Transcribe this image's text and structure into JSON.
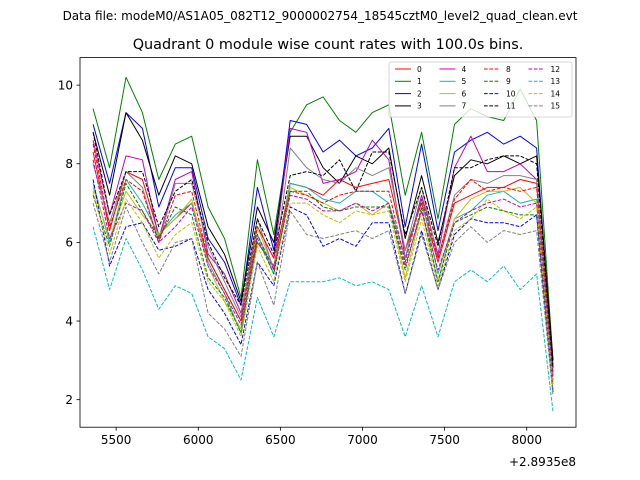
{
  "chart_data": {
    "type": "line",
    "suptitle": "Data file: modeM0/AS1A05_082T12_9000002754_18545cztM0_level2_quad_clean.evt",
    "title": "Quadrant 0 module wise count rates with 100.0s bins.",
    "xlabel": "",
    "ylabel": "",
    "x_offset_label": "+2.8935e8",
    "xlim": [
      5280,
      8300
    ],
    "ylim": [
      1.3,
      10.7
    ],
    "xticks": [
      5500,
      6000,
      6500,
      7000,
      7500,
      8000
    ],
    "xtick_labels": [
      "5500",
      "6000",
      "6500",
      "7000",
      "7500",
      "8000"
    ],
    "yticks": [
      2,
      4,
      6,
      8,
      10
    ],
    "ytick_labels": [
      "2",
      "4",
      "6",
      "8",
      "10"
    ],
    "legend_position": "top-right",
    "legend_columns": 4,
    "x": [
      5360,
      5460,
      5560,
      5660,
      5760,
      5860,
      5960,
      6060,
      6160,
      6260,
      6360,
      6460,
      6560,
      6660,
      6760,
      6860,
      6960,
      7060,
      7160,
      7260,
      7360,
      7460,
      7560,
      7660,
      7760,
      7860,
      7960,
      8060,
      8160
    ],
    "series": [
      {
        "name": "0",
        "color": "#ff0000",
        "dash": "solid",
        "values": [
          8.3,
          6.3,
          7.8,
          7.6,
          6.2,
          6.6,
          7.0,
          5.6,
          4.8,
          4.0,
          6.0,
          5.4,
          7.5,
          7.4,
          7.2,
          7.6,
          7.4,
          7.5,
          7.6,
          5.8,
          7.0,
          5.5,
          7.0,
          7.2,
          7.4,
          7.4,
          7.6,
          7.5,
          2.9
        ]
      },
      {
        "name": "1",
        "color": "#008000",
        "dash": "solid",
        "values": [
          9.4,
          7.9,
          10.2,
          9.3,
          7.6,
          8.5,
          8.7,
          6.9,
          6.1,
          4.6,
          8.1,
          6.2,
          8.8,
          9.5,
          9.7,
          9.1,
          8.8,
          9.3,
          9.5,
          7.2,
          8.8,
          6.6,
          9.0,
          9.4,
          9.2,
          9.1,
          9.9,
          9.1,
          3.0
        ]
      },
      {
        "name": "2",
        "color": "#0000ff",
        "dash": "solid",
        "values": [
          9.0,
          7.5,
          9.3,
          8.9,
          6.9,
          7.9,
          7.9,
          6.1,
          5.5,
          4.4,
          7.4,
          5.8,
          9.1,
          9.0,
          8.3,
          8.6,
          8.2,
          8.4,
          8.9,
          6.4,
          8.5,
          6.3,
          8.3,
          8.6,
          8.8,
          8.5,
          8.7,
          8.4,
          2.8
        ]
      },
      {
        "name": "3",
        "color": "#000000",
        "dash": "solid",
        "values": [
          8.8,
          7.2,
          9.3,
          8.6,
          7.2,
          8.2,
          8.0,
          6.4,
          5.7,
          4.5,
          6.9,
          6.0,
          8.7,
          8.7,
          7.9,
          7.5,
          8.2,
          8.0,
          8.4,
          6.1,
          7.7,
          6.0,
          7.7,
          8.1,
          8.0,
          8.2,
          8.0,
          8.2,
          3.0
        ]
      },
      {
        "name": "4",
        "color": "#bf00bf",
        "dash": "solid",
        "values": [
          8.6,
          6.7,
          8.2,
          8.1,
          6.1,
          7.6,
          7.8,
          5.7,
          5.2,
          4.2,
          6.4,
          5.6,
          8.9,
          8.8,
          7.5,
          7.6,
          7.8,
          8.6,
          8.1,
          5.6,
          7.2,
          5.7,
          7.9,
          8.7,
          7.8,
          7.8,
          8.0,
          7.6,
          2.6
        ]
      },
      {
        "name": "5",
        "color": "#20b2aa",
        "dash": "solid",
        "values": [
          7.5,
          6.0,
          7.6,
          7.0,
          6.2,
          6.7,
          7.0,
          5.5,
          4.7,
          3.7,
          6.2,
          5.2,
          7.5,
          7.4,
          7.1,
          7.0,
          7.3,
          7.3,
          7.0,
          5.6,
          7.1,
          5.2,
          6.6,
          6.8,
          7.2,
          7.3,
          7.0,
          7.1,
          2.4
        ]
      },
      {
        "name": "6",
        "color": "#bfbf00",
        "dash": "solid",
        "values": [
          7.4,
          6.1,
          7.3,
          6.7,
          6.2,
          6.6,
          7.1,
          5.4,
          4.5,
          3.8,
          6.4,
          5.3,
          7.4,
          7.2,
          7.0,
          6.8,
          7.0,
          6.7,
          7.0,
          5.1,
          6.8,
          5.0,
          6.6,
          7.1,
          7.3,
          7.3,
          7.4,
          7.0,
          2.4
        ]
      },
      {
        "name": "7",
        "color": "#808080",
        "dash": "solid",
        "values": [
          8.0,
          6.5,
          7.8,
          7.4,
          6.0,
          7.5,
          7.5,
          5.9,
          5.0,
          4.1,
          6.6,
          5.3,
          8.4,
          7.9,
          7.6,
          7.5,
          7.9,
          7.7,
          7.9,
          5.8,
          7.4,
          5.6,
          7.2,
          7.6,
          7.5,
          7.7,
          7.7,
          7.6,
          2.6
        ]
      },
      {
        "name": "8",
        "color": "#ff0000",
        "dash": "dashed",
        "values": [
          8.5,
          6.4,
          7.6,
          7.3,
          6.0,
          7.2,
          7.3,
          5.6,
          4.8,
          4.0,
          6.4,
          5.6,
          7.3,
          7.2,
          7.0,
          7.2,
          7.3,
          7.3,
          7.3,
          5.5,
          7.1,
          5.6,
          7.1,
          7.6,
          7.3,
          7.4,
          7.3,
          7.4,
          2.7
        ]
      },
      {
        "name": "9",
        "color": "#008000",
        "dash": "dashed",
        "values": [
          7.2,
          5.9,
          7.5,
          6.8,
          6.1,
          6.9,
          6.7,
          5.1,
          4.6,
          3.7,
          6.1,
          5.2,
          7.3,
          7.3,
          6.9,
          6.8,
          6.9,
          6.9,
          6.9,
          5.3,
          6.9,
          5.0,
          6.5,
          6.7,
          6.9,
          6.8,
          6.7,
          6.7,
          2.2
        ]
      },
      {
        "name": "10",
        "color": "#0000ff",
        "dash": "dashed",
        "values": [
          7.6,
          5.4,
          6.4,
          6.5,
          5.8,
          5.9,
          6.1,
          4.8,
          4.2,
          3.4,
          5.5,
          4.9,
          6.9,
          6.7,
          5.9,
          6.1,
          5.9,
          6.5,
          6.5,
          4.7,
          6.3,
          4.8,
          6.2,
          6.6,
          6.5,
          6.5,
          6.4,
          6.7,
          2.2
        ]
      },
      {
        "name": "11",
        "color": "#000000",
        "dash": "dashed",
        "values": [
          8.8,
          6.7,
          7.8,
          7.8,
          6.4,
          7.3,
          7.6,
          6.0,
          5.1,
          4.4,
          6.6,
          5.7,
          7.7,
          7.8,
          7.7,
          8.1,
          7.3,
          8.3,
          8.3,
          6.2,
          7.4,
          5.9,
          7.9,
          7.9,
          8.1,
          8.2,
          8.2,
          8.0,
          2.8
        ]
      },
      {
        "name": "12",
        "color": "#bf00bf",
        "dash": "dashed",
        "values": [
          8.1,
          6.1,
          7.0,
          6.8,
          6.0,
          6.4,
          6.9,
          5.4,
          4.7,
          3.9,
          6.2,
          5.3,
          7.2,
          7.1,
          6.8,
          6.8,
          7.0,
          6.8,
          7.0,
          5.4,
          6.8,
          5.3,
          6.5,
          6.8,
          7.0,
          7.1,
          6.9,
          7.0,
          2.5
        ]
      },
      {
        "name": "13",
        "color": "#00bfbf",
        "dash": "dashed",
        "values": [
          6.4,
          4.8,
          6.1,
          5.3,
          4.3,
          4.9,
          4.7,
          3.6,
          3.3,
          2.5,
          4.6,
          3.6,
          5.0,
          5.0,
          5.0,
          5.1,
          4.9,
          5.0,
          4.8,
          3.6,
          4.9,
          3.6,
          5.0,
          5.3,
          5.0,
          5.4,
          4.8,
          5.2,
          1.7
        ]
      },
      {
        "name": "14",
        "color": "#bfbf00",
        "dash": "dashed",
        "values": [
          7.3,
          5.7,
          7.1,
          6.5,
          5.6,
          6.2,
          6.5,
          5.0,
          4.5,
          3.6,
          5.9,
          5.0,
          7.0,
          7.0,
          6.7,
          6.5,
          6.8,
          6.7,
          6.8,
          5.0,
          6.6,
          4.9,
          6.3,
          6.6,
          7.1,
          6.8,
          6.6,
          6.9,
          2.3
        ]
      },
      {
        "name": "15",
        "color": "#808080",
        "dash": "dashed",
        "values": [
          7.0,
          5.5,
          6.9,
          6.0,
          5.2,
          6.0,
          6.1,
          4.2,
          3.8,
          3.1,
          5.5,
          4.4,
          6.8,
          6.2,
          6.1,
          6.2,
          6.3,
          6.1,
          6.3,
          4.7,
          6.2,
          4.8,
          6.0,
          6.4,
          6.0,
          6.3,
          6.2,
          6.3,
          2.1
        ]
      }
    ]
  }
}
